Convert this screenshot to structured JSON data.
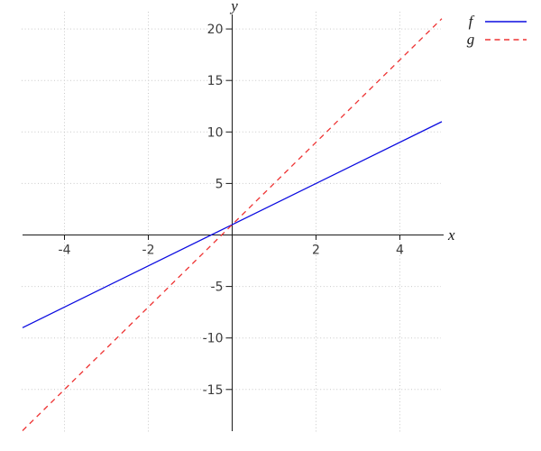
{
  "figure": {
    "background": "#ffffff"
  },
  "chart_data": {
    "type": "line",
    "title": "",
    "xlabel": "x",
    "ylabel": "y",
    "xlim": [
      -5,
      5
    ],
    "ylim": [
      -21,
      22
    ],
    "grid": true,
    "grid_style": "dotted",
    "legend_position": "top-right",
    "colors": {
      "axis": "#1a1a1a",
      "tick_label": "#3c3c3c",
      "grid": "#c9c9c9"
    },
    "x_ticks": [
      {
        "value": -4,
        "label": "-4"
      },
      {
        "value": -2,
        "label": "-2"
      },
      {
        "value": 2,
        "label": "2"
      },
      {
        "value": 4,
        "label": "4"
      }
    ],
    "y_ticks": [
      {
        "value": 20,
        "label": "20"
      },
      {
        "value": 15,
        "label": "15"
      },
      {
        "value": 10,
        "label": "10"
      },
      {
        "value": 5,
        "label": "5"
      },
      {
        "value": -5,
        "label": "-5"
      },
      {
        "value": -10,
        "label": "-10"
      },
      {
        "value": -15,
        "label": "-15"
      }
    ],
    "series": [
      {
        "name": "f",
        "color": "#0b0be0",
        "line_style": "solid",
        "x": [
          -5,
          0,
          5
        ],
        "y": [
          -9,
          1,
          11
        ]
      },
      {
        "name": "g",
        "color": "#ee3333",
        "line_style": "dashed",
        "x": [
          -5,
          0,
          5
        ],
        "y": [
          -19,
          1,
          21
        ]
      }
    ]
  }
}
